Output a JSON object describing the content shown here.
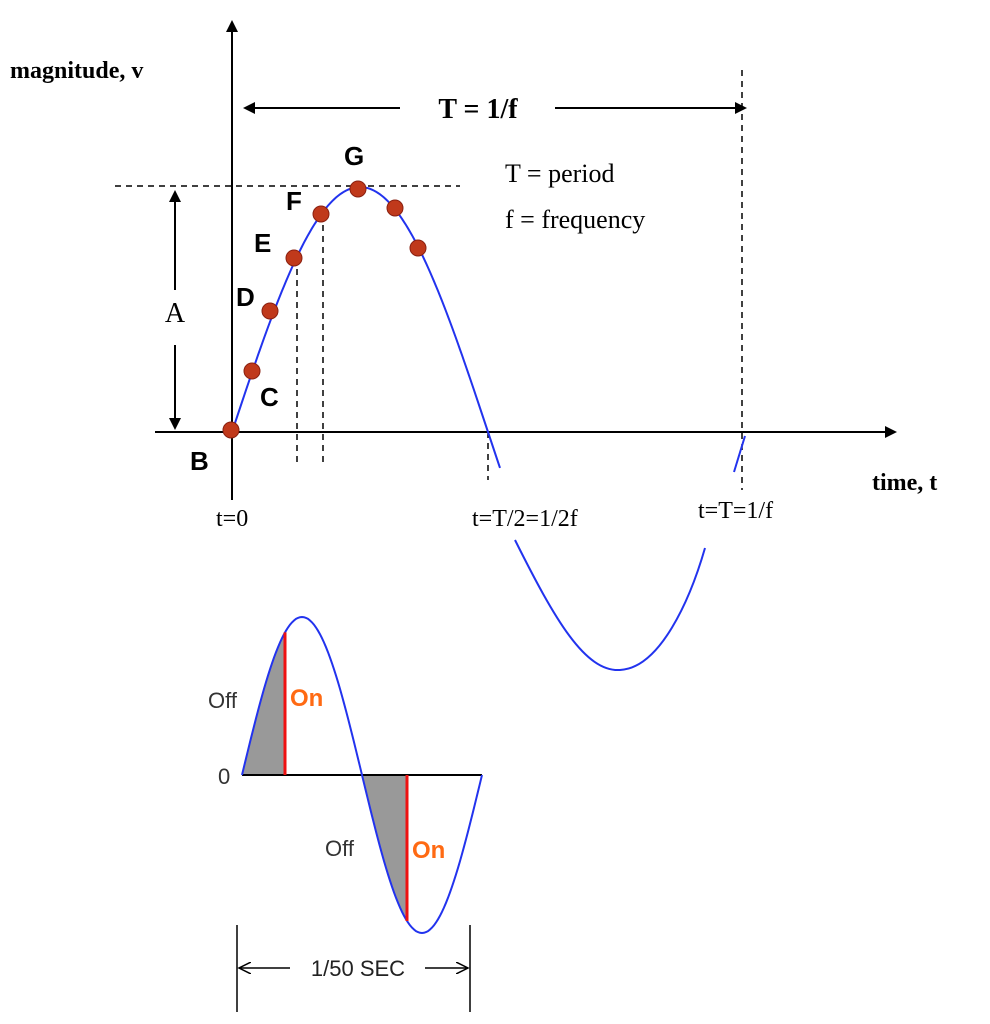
{
  "top_diagram": {
    "y_axis_label": "magnitude, v",
    "x_axis_label": "time, t",
    "period_label": "T = 1/f",
    "amplitude_label": "A",
    "legend": [
      "T = period",
      "f = frequency"
    ],
    "points": [
      "B",
      "C",
      "D",
      "E",
      "F",
      "G"
    ],
    "time_labels": [
      "t=0",
      "t=T/2=1/2f",
      "t=T=1/f"
    ]
  },
  "bottom_diagram": {
    "zero_label": "0",
    "phases": [
      {
        "off": "Off",
        "on": "On"
      },
      {
        "off": "Off",
        "on": "On"
      }
    ],
    "duration_label": "1/50 SEC"
  }
}
